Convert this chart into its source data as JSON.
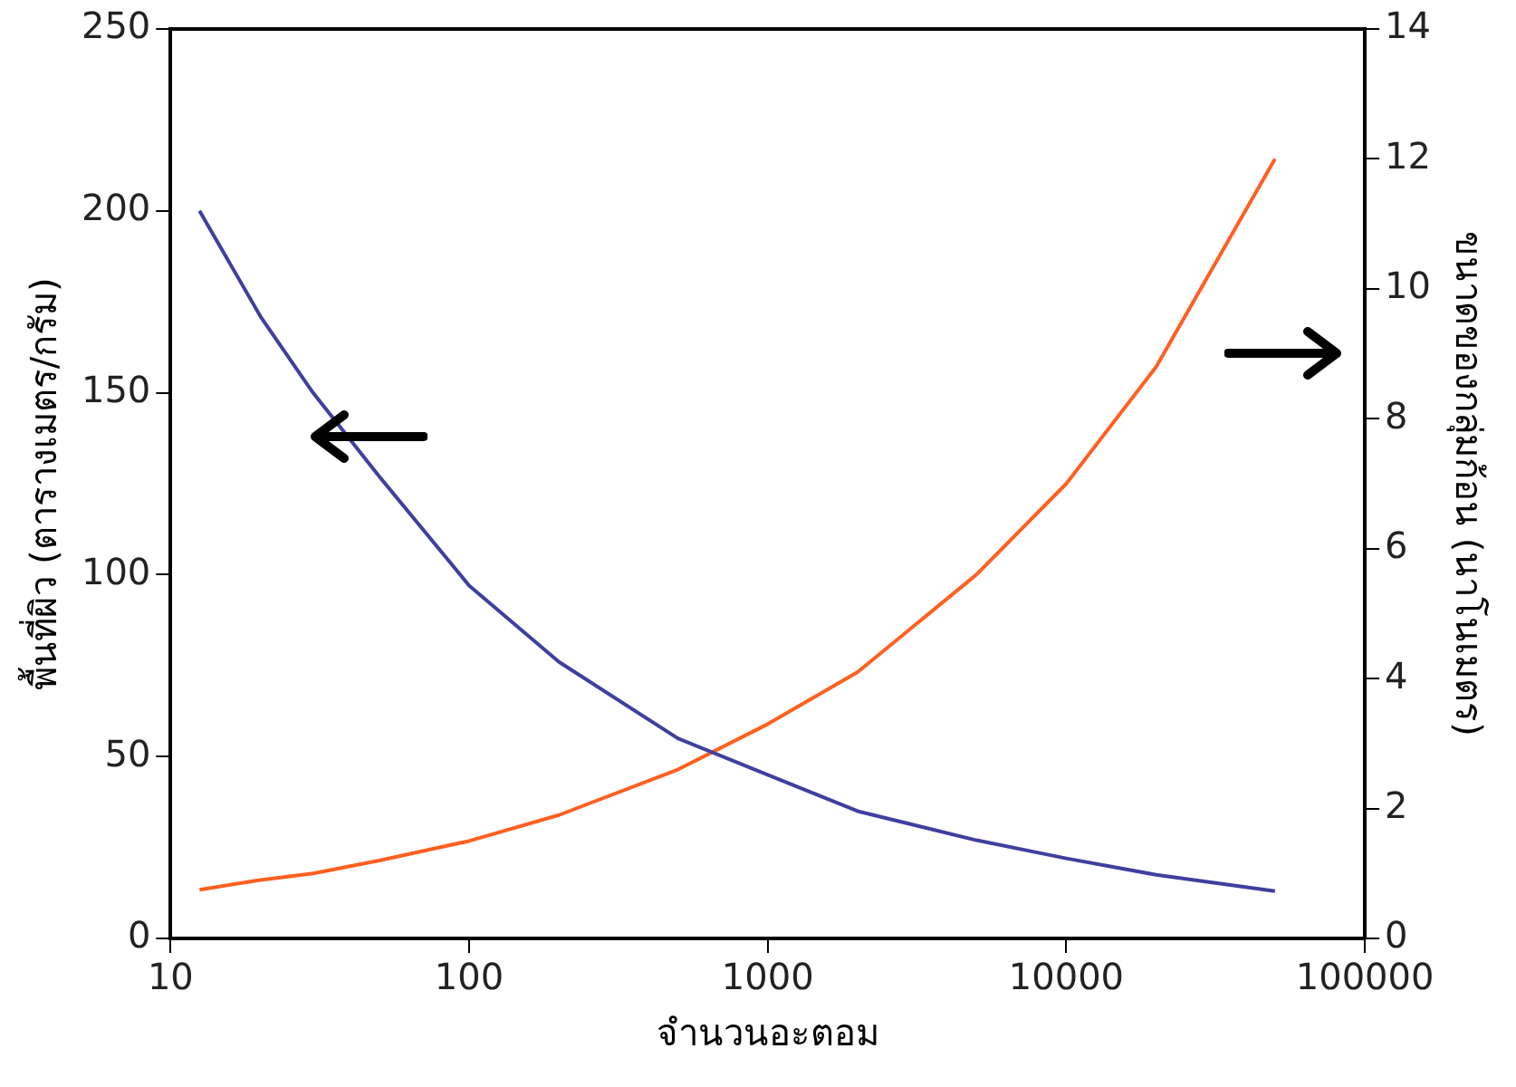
{
  "chart_data": {
    "type": "line",
    "xlabel": "จำนวนอะตอม",
    "ylabel": "พื้นที่ผิว (ตารางเมตร/กรัม)",
    "y2label": "ขนาดของกลุ่มก้อน (นาโนเมตร)",
    "log": "x",
    "xlim": [
      10,
      100000
    ],
    "xticks": [
      10,
      100,
      1000,
      10000,
      100000
    ],
    "ylim": [
      0,
      250
    ],
    "yticks": [
      0,
      50,
      100,
      150,
      200,
      250
    ],
    "y2lim": [
      0,
      14
    ],
    "y2ticks": [
      0,
      2,
      4,
      6,
      8,
      10,
      12,
      14
    ],
    "x": [
      12.5,
      20,
      30,
      50,
      100,
      200,
      500,
      1000,
      2000,
      5000,
      10000,
      20000,
      50000
    ],
    "series": [
      {
        "color": "#3f3fa0",
        "values": [
          200,
          171,
          150,
          127,
          97,
          76,
          55,
          45,
          35,
          27,
          22,
          17.5,
          13
        ]
      },
      {
        "color": "#ff6020",
        "axis": "y2",
        "values": [
          0.75,
          0.9,
          1.0,
          1.2,
          1.5,
          1.9,
          2.6,
          3.3,
          4.1,
          5.6,
          7.0,
          8.8,
          12.0
        ]
      }
    ],
    "grid": false,
    "legend": false,
    "marker": "none",
    "line_style": "solid"
  }
}
